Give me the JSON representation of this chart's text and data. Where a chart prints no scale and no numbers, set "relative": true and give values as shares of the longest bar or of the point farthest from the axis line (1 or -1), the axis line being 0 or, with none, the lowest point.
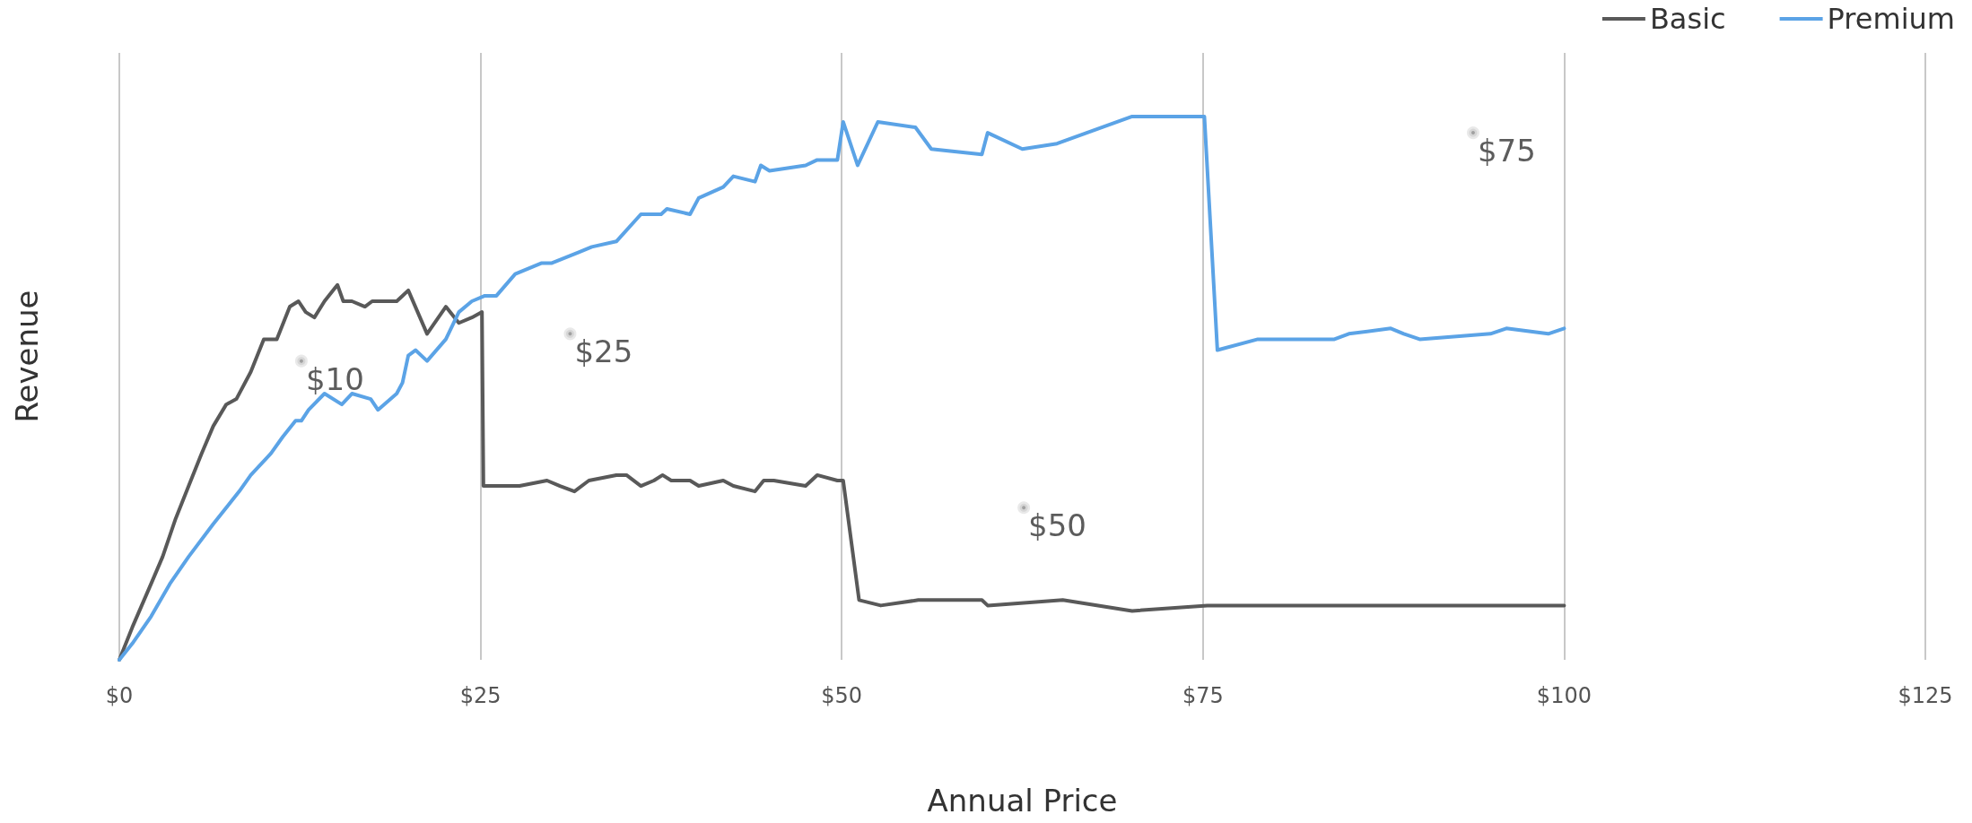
{
  "chart_data": {
    "type": "line",
    "xlabel": "Annual Price",
    "ylabel": "Revenue",
    "relative": true,
    "xlim": [
      0,
      125
    ],
    "xticks": [
      {
        "value": 0,
        "label": "$0"
      },
      {
        "value": 25,
        "label": "$25"
      },
      {
        "value": 50,
        "label": "$50"
      },
      {
        "value": 75,
        "label": "$75"
      },
      {
        "value": 100,
        "label": "$100"
      },
      {
        "value": 125,
        "label": "$125"
      }
    ],
    "grid": "x",
    "legend": "top right",
    "marker": "none",
    "line_style": "solid",
    "series": [
      {
        "name": "Basic",
        "color": "#595959",
        "x": [
          0,
          0.9,
          2.2,
          3.0,
          3.9,
          4.8,
          5.7,
          6.5,
          7.4,
          8.1,
          9.1,
          10.0,
          10.9,
          11.8,
          12.4,
          12.9,
          13.5,
          14.2,
          14.8,
          15.1,
          15.5,
          16.1,
          17.0,
          17.5,
          18.0,
          19.2,
          19.6,
          20.0,
          21.3,
          22.6,
          23.5,
          24.4,
          25.1,
          25.2,
          26.3,
          27.7,
          29.6,
          30.5,
          31.5,
          32.5,
          34.4,
          35.1,
          36.1,
          37.0,
          37.6,
          38.2,
          39.5,
          40.1,
          41.8,
          42.5,
          44.0,
          44.6,
          45.3,
          47.5,
          48.3,
          49.7,
          50.1,
          51.2,
          52.7,
          55.3,
          59.7,
          60.1,
          65.3,
          70.1,
          75.3,
          94.5,
          95.8,
          100
        ],
        "values": [
          0,
          0.06,
          0.14,
          0.19,
          0.26,
          0.32,
          0.38,
          0.43,
          0.47,
          0.48,
          0.53,
          0.59,
          0.59,
          0.65,
          0.66,
          0.64,
          0.63,
          0.66,
          0.68,
          0.69,
          0.66,
          0.66,
          0.65,
          0.66,
          0.66,
          0.66,
          0.67,
          0.68,
          0.6,
          0.65,
          0.62,
          0.63,
          0.64,
          0.32,
          0.32,
          0.32,
          0.33,
          0.32,
          0.31,
          0.33,
          0.34,
          0.34,
          0.32,
          0.33,
          0.34,
          0.33,
          0.33,
          0.32,
          0.33,
          0.32,
          0.31,
          0.33,
          0.33,
          0.32,
          0.34,
          0.33,
          0.33,
          0.11,
          0.1,
          0.11,
          0.11,
          0.1,
          0.11,
          0.09,
          0.1,
          0.1,
          0.1,
          0.1
        ]
      },
      {
        "name": "Premium",
        "color": "#5ba3e6",
        "x": [
          0,
          0.9,
          2.2,
          3.5,
          4.8,
          6.5,
          8.3,
          9.1,
          10.5,
          11.3,
          12.2,
          12.6,
          13.1,
          14.2,
          15.4,
          16.1,
          17.4,
          17.9,
          19.2,
          19.6,
          20.0,
          20.5,
          21.3,
          22.6,
          23.5,
          24.4,
          25.3,
          26.1,
          27.4,
          29.2,
          29.9,
          31.8,
          32.7,
          34.4,
          36.1,
          37.5,
          37.9,
          39.5,
          40.1,
          41.8,
          42.5,
          44.0,
          44.4,
          45.0,
          47.5,
          48.3,
          49.7,
          50.1,
          51.1,
          52.5,
          55.1,
          56.2,
          59.7,
          60.1,
          62.5,
          64.9,
          70.1,
          71.9,
          75.1,
          76.0,
          78.8,
          80.1,
          84.1,
          85.1,
          88.0,
          88.9,
          90.0,
          94.9,
          96.0,
          98.9,
          100
        ],
        "values": [
          0,
          0.03,
          0.08,
          0.14,
          0.19,
          0.25,
          0.31,
          0.34,
          0.38,
          0.41,
          0.44,
          0.44,
          0.46,
          0.49,
          0.47,
          0.49,
          0.48,
          0.46,
          0.49,
          0.51,
          0.56,
          0.57,
          0.55,
          0.59,
          0.64,
          0.66,
          0.67,
          0.67,
          0.71,
          0.73,
          0.73,
          0.75,
          0.76,
          0.77,
          0.82,
          0.82,
          0.83,
          0.82,
          0.85,
          0.87,
          0.89,
          0.88,
          0.91,
          0.9,
          0.91,
          0.92,
          0.92,
          0.99,
          0.91,
          0.99,
          0.98,
          0.94,
          0.93,
          0.97,
          0.94,
          0.95,
          1.0,
          1.0,
          1.0,
          0.57,
          0.59,
          0.59,
          0.59,
          0.6,
          0.61,
          0.6,
          0.59,
          0.6,
          0.61,
          0.6,
          0.61
        ]
      }
    ],
    "annotations": [
      {
        "text": "$10",
        "x": 12.6,
        "y": 0.55
      },
      {
        "text": "$25",
        "x": 31.2,
        "y": 0.6
      },
      {
        "text": "$50",
        "x": 62.6,
        "y": 0.28
      },
      {
        "text": "$75",
        "x": 93.7,
        "y": 0.97
      }
    ]
  }
}
